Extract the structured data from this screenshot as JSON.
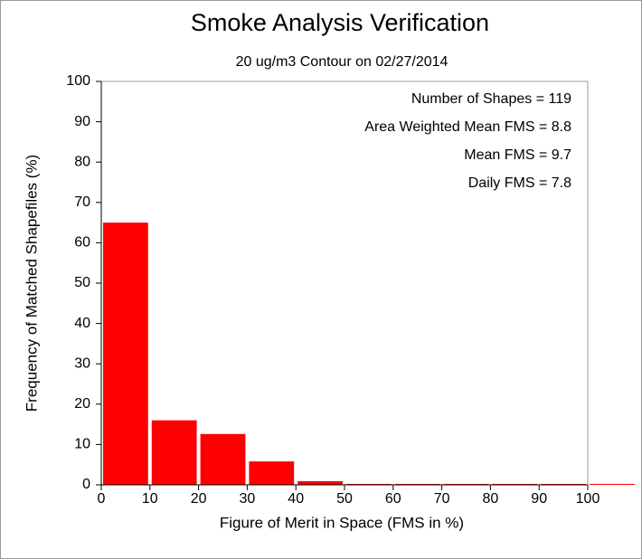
{
  "chart_data": {
    "type": "histogram",
    "title": "Smoke Analysis Verification",
    "subtitle": "20 ug/m3 Contour on 02/27/2014",
    "xlabel": "Figure of Merit in Space (FMS in %)",
    "ylabel": "Frequency of Matched Shapefiles (%)",
    "annotations": [
      "Number of Shapes = 119",
      "Area Weighted Mean FMS = 8.8",
      "Mean FMS = 9.7",
      "Daily FMS = 7.8"
    ],
    "bins": [
      0,
      10,
      20,
      30,
      40,
      50,
      60,
      70,
      80,
      90,
      100,
      110
    ],
    "values": [
      65,
      16,
      12.6,
      5.8,
      0.9,
      0,
      0,
      0,
      0,
      0,
      0
    ],
    "color": "#ff0000",
    "xlim": [
      0,
      100
    ],
    "ylim": [
      0,
      100
    ],
    "xticks": [
      0,
      10,
      20,
      30,
      40,
      50,
      60,
      70,
      80,
      90,
      100
    ],
    "yticks": [
      0,
      10,
      20,
      30,
      40,
      50,
      60,
      70,
      80,
      90,
      100
    ]
  }
}
